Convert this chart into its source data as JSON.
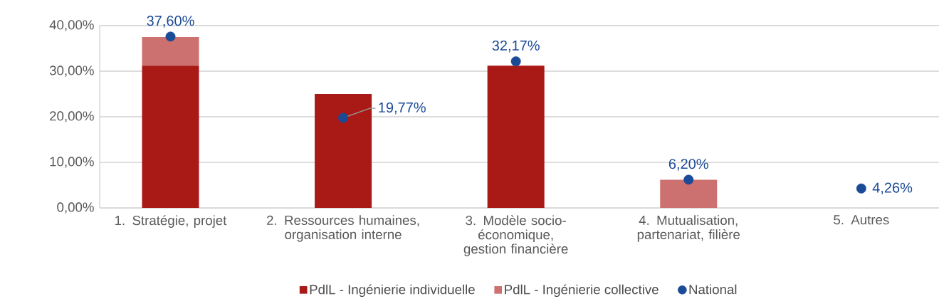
{
  "chart_data": {
    "type": "bar",
    "stacked": true,
    "grid": "y",
    "legend": "bottom",
    "marker": "circle",
    "categories": [
      "1. Stratégie, projet",
      "2. Ressources humaines, organisation interne",
      "3. Modèle socio-économique, gestion financière",
      "4. Mutualisation, partenariat, filière",
      "5. Autres"
    ],
    "ylim": [
      0,
      40
    ],
    "yticks": [
      {
        "value": 0,
        "label": "0,00%"
      },
      {
        "value": 10,
        "label": "10,00%"
      },
      {
        "value": 20,
        "label": "20,00%"
      },
      {
        "value": 30,
        "label": "30,00%"
      },
      {
        "value": 40,
        "label": "40,00%"
      }
    ],
    "series": [
      {
        "name": "PdlL - Ingénierie individuelle",
        "color": "#a91916",
        "values": [
          31.2,
          25.0,
          31.2,
          null,
          null
        ]
      },
      {
        "name": "PdlL - Ingénierie collective",
        "color": "#cc716f",
        "values": [
          6.3,
          null,
          null,
          6.2,
          null
        ]
      },
      {
        "name": "National",
        "type": "scatter",
        "color": "#1b4a97",
        "values": [
          37.6,
          19.77,
          32.17,
          6.2,
          4.26
        ],
        "value_labels": [
          "37,60%",
          "19,77%",
          "32,17%",
          "6,20%",
          "4,26%"
        ]
      }
    ]
  }
}
